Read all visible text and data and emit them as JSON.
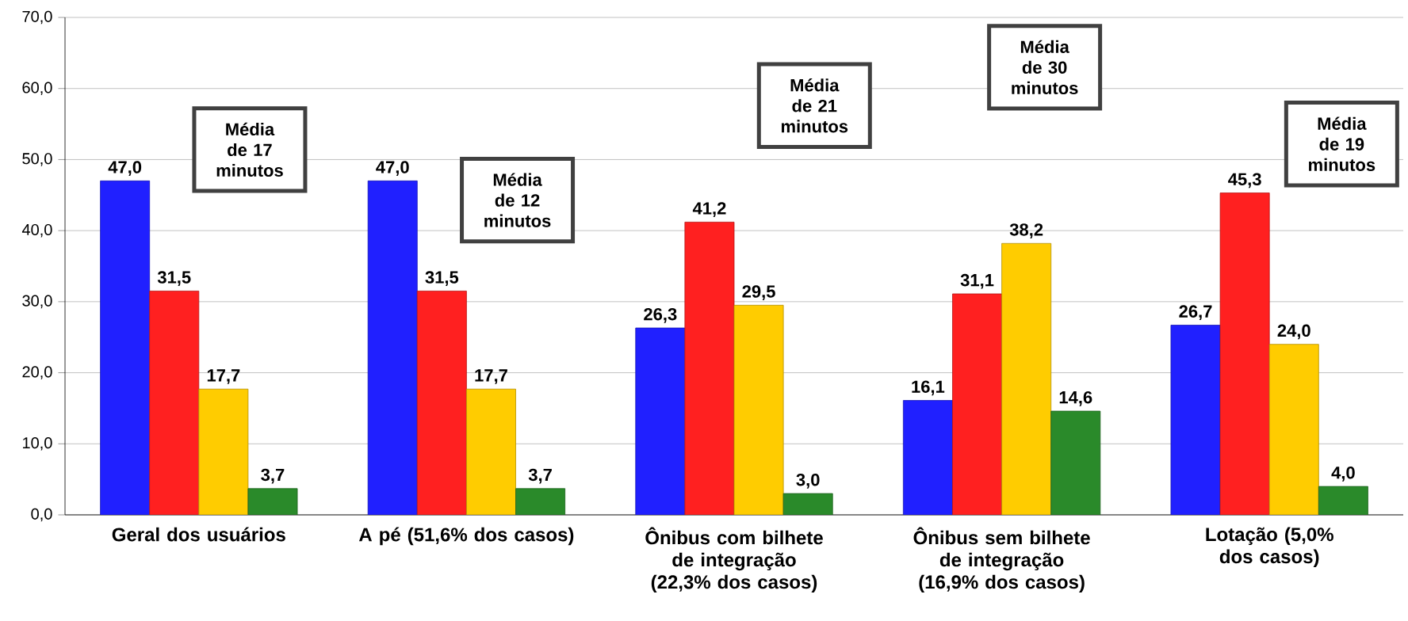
{
  "chart_data": {
    "type": "bar",
    "categories": [
      "Geral dos usuários",
      "A pé (51,6% dos casos)",
      "Ônibus com bilhete de integração (22,3% dos casos)",
      "Ônibus sem bilhete de integração (16,9% dos casos)",
      "Lotação (5,0% dos casos)"
    ],
    "series": [
      {
        "color": "#2020ff",
        "values": [
          47.0,
          47.0,
          26.3,
          16.1,
          26.7
        ],
        "value_labels": [
          "47,0",
          "47,0",
          "26,3",
          "16,1",
          "26,7"
        ]
      },
      {
        "color": "#ff2020",
        "values": [
          31.5,
          31.5,
          41.2,
          31.1,
          45.3
        ],
        "value_labels": [
          "31,5",
          "31,5",
          "41,2",
          "31,1",
          "45,3"
        ]
      },
      {
        "color": "#ffcc00",
        "values": [
          17.7,
          17.7,
          29.5,
          38.2,
          24.0
        ],
        "value_labels": [
          "17,7",
          "17,7",
          "29,5",
          "38,2",
          "24,0"
        ]
      },
      {
        "color": "#2a8a2a",
        "values": [
          3.7,
          3.7,
          3.0,
          14.6,
          4.0
        ],
        "value_labels": [
          "3,7",
          "3,7",
          "3,0",
          "14,6",
          "4,0"
        ]
      }
    ],
    "ylim": [
      0,
      70
    ],
    "yticks": [
      {
        "value": 0,
        "label": "0,0"
      },
      {
        "value": 10,
        "label": "10,0"
      },
      {
        "value": 20,
        "label": "20,0"
      },
      {
        "value": 30,
        "label": "30,0"
      },
      {
        "value": 40,
        "label": "40,0"
      },
      {
        "value": 50,
        "label": "50,0"
      },
      {
        "value": 60,
        "label": "60,0"
      },
      {
        "value": 70,
        "label": "70,0"
      }
    ],
    "grid": "y",
    "annotations": [
      "Média de 17 minutos",
      "Média de 12 minutos",
      "Média de 21 minutos",
      "Média de 30 minutos",
      "Média de 19 minutos"
    ]
  }
}
